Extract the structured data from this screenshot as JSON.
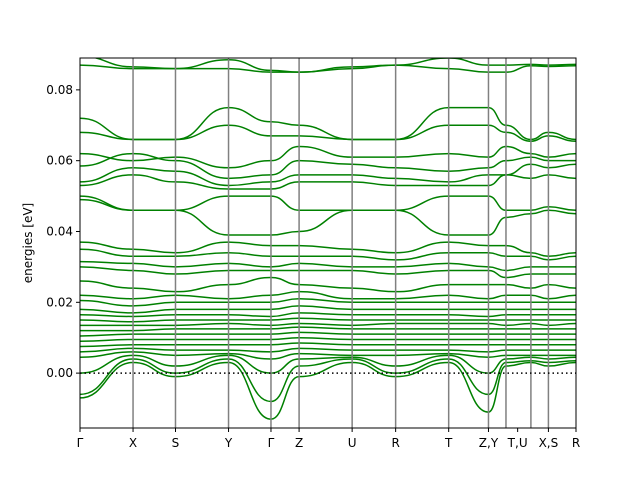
{
  "chart_data": {
    "type": "line",
    "title": "",
    "xlabel": "",
    "ylabel": "energies [eV]",
    "ylim": [
      -0.0155,
      0.089
    ],
    "yticks": [
      0.0,
      0.02,
      0.04,
      0.06,
      0.08
    ],
    "ytick_labels": [
      "0.00",
      "0.02",
      "0.04",
      "0.06",
      "0.08"
    ],
    "kpath": {
      "positions": [
        0,
        1,
        1.8,
        2.8,
        3.6,
        4.13,
        5.13,
        5.95,
        6.95,
        7.7,
        8.03,
        8.5,
        8.83,
        9.35
      ],
      "labels": [
        "Γ",
        "X",
        "S",
        "Y",
        "Γ",
        "Z",
        "U",
        "R",
        "T",
        "Z,Y",
        "T,U",
        "X,S",
        "R"
      ],
      "label_positions": [
        0,
        1,
        1.8,
        2.8,
        3.6,
        4.13,
        5.13,
        5.95,
        6.95,
        7.7,
        8.25,
        8.83,
        9.35
      ]
    },
    "fermi_level": 0.0,
    "colors": {
      "bands": "#008000",
      "vlines": "#808080",
      "fermi": "#000000"
    },
    "bands": [
      [
        0.0895,
        0.0865,
        0.086,
        0.0885,
        0.0855,
        0.085,
        0.0865,
        0.087,
        0.089,
        0.087,
        0.087,
        0.0872,
        0.087,
        0.0872
      ],
      [
        0.087,
        0.086,
        0.086,
        0.086,
        0.085,
        0.085,
        0.086,
        0.087,
        0.086,
        0.085,
        0.085,
        0.0868,
        0.0866,
        0.0868
      ],
      [
        0.072,
        0.066,
        0.066,
        0.075,
        0.071,
        0.07,
        0.066,
        0.066,
        0.075,
        0.075,
        0.07,
        0.066,
        0.068,
        0.066
      ],
      [
        0.068,
        0.066,
        0.066,
        0.07,
        0.067,
        0.067,
        0.066,
        0.066,
        0.07,
        0.07,
        0.068,
        0.0655,
        0.067,
        0.0655
      ],
      [
        0.062,
        0.06,
        0.061,
        0.058,
        0.06,
        0.064,
        0.061,
        0.061,
        0.062,
        0.061,
        0.064,
        0.062,
        0.061,
        0.062
      ],
      [
        0.0585,
        0.062,
        0.06,
        0.055,
        0.056,
        0.06,
        0.059,
        0.058,
        0.057,
        0.058,
        0.06,
        0.061,
        0.06,
        0.06
      ],
      [
        0.054,
        0.058,
        0.057,
        0.053,
        0.054,
        0.056,
        0.056,
        0.055,
        0.054,
        0.056,
        0.056,
        0.059,
        0.058,
        0.059
      ],
      [
        0.053,
        0.056,
        0.054,
        0.052,
        0.052,
        0.054,
        0.054,
        0.053,
        0.053,
        0.053,
        0.056,
        0.055,
        0.056,
        0.055
      ],
      [
        0.05,
        0.046,
        0.046,
        0.05,
        0.05,
        0.046,
        0.046,
        0.046,
        0.05,
        0.05,
        0.046,
        0.046,
        0.047,
        0.046
      ],
      [
        0.049,
        0.046,
        0.046,
        0.039,
        0.039,
        0.04,
        0.046,
        0.046,
        0.039,
        0.039,
        0.044,
        0.045,
        0.046,
        0.045
      ],
      [
        0.037,
        0.035,
        0.034,
        0.037,
        0.036,
        0.036,
        0.035,
        0.034,
        0.037,
        0.036,
        0.036,
        0.034,
        0.033,
        0.034
      ],
      [
        0.035,
        0.033,
        0.033,
        0.034,
        0.033,
        0.033,
        0.033,
        0.032,
        0.034,
        0.034,
        0.033,
        0.033,
        0.032,
        0.033
      ],
      [
        0.0315,
        0.031,
        0.03,
        0.031,
        0.03,
        0.031,
        0.03,
        0.03,
        0.031,
        0.03,
        0.029,
        0.03,
        0.03,
        0.03
      ],
      [
        0.03,
        0.029,
        0.028,
        0.029,
        0.029,
        0.029,
        0.029,
        0.028,
        0.029,
        0.029,
        0.027,
        0.028,
        0.028,
        0.028
      ],
      [
        0.026,
        0.024,
        0.023,
        0.025,
        0.027,
        0.025,
        0.024,
        0.023,
        0.025,
        0.025,
        0.025,
        0.024,
        0.025,
        0.024
      ],
      [
        0.022,
        0.021,
        0.022,
        0.021,
        0.022,
        0.023,
        0.021,
        0.021,
        0.022,
        0.021,
        0.022,
        0.022,
        0.021,
        0.022
      ],
      [
        0.0205,
        0.019,
        0.02,
        0.02,
        0.02,
        0.021,
        0.02,
        0.02,
        0.02,
        0.02,
        0.02,
        0.02,
        0.02,
        0.02
      ],
      [
        0.018,
        0.017,
        0.018,
        0.018,
        0.018,
        0.019,
        0.018,
        0.018,
        0.018,
        0.018,
        0.018,
        0.018,
        0.018,
        0.018
      ],
      [
        0.0165,
        0.016,
        0.0165,
        0.0165,
        0.016,
        0.017,
        0.0165,
        0.0165,
        0.0165,
        0.016,
        0.0165,
        0.0165,
        0.0165,
        0.0165
      ],
      [
        0.015,
        0.0145,
        0.015,
        0.015,
        0.015,
        0.0155,
        0.015,
        0.015,
        0.015,
        0.015,
        0.015,
        0.015,
        0.015,
        0.015
      ],
      [
        0.0135,
        0.0135,
        0.0135,
        0.014,
        0.0135,
        0.014,
        0.0135,
        0.014,
        0.014,
        0.014,
        0.0135,
        0.014,
        0.0135,
        0.014
      ],
      [
        0.012,
        0.012,
        0.0125,
        0.0125,
        0.0125,
        0.013,
        0.0125,
        0.0125,
        0.0125,
        0.0125,
        0.0125,
        0.0125,
        0.0125,
        0.0125
      ],
      [
        0.0105,
        0.011,
        0.011,
        0.011,
        0.011,
        0.0115,
        0.011,
        0.011,
        0.011,
        0.011,
        0.011,
        0.011,
        0.011,
        0.011
      ],
      [
        0.009,
        0.0095,
        0.0095,
        0.0095,
        0.0095,
        0.01,
        0.0095,
        0.0095,
        0.0095,
        0.0095,
        0.0095,
        0.0095,
        0.0095,
        0.0095
      ],
      [
        0.0075,
        0.008,
        0.008,
        0.008,
        0.008,
        0.0085,
        0.008,
        0.008,
        0.008,
        0.008,
        0.008,
        0.008,
        0.008,
        0.008
      ],
      [
        0.006,
        0.007,
        0.0065,
        0.0065,
        0.006,
        0.007,
        0.0065,
        0.0065,
        0.0065,
        0.006,
        0.0065,
        0.0065,
        0.0065,
        0.0065
      ],
      [
        0.0045,
        0.006,
        0.005,
        0.0055,
        0.004,
        0.0055,
        0.005,
        0.005,
        0.0055,
        0.0045,
        0.005,
        0.005,
        0.005,
        0.005
      ],
      [
        0.0,
        0.005,
        0.002,
        0.005,
        0.0,
        0.004,
        0.0045,
        0.002,
        0.005,
        0.0,
        0.004,
        0.0045,
        0.004,
        0.0045
      ],
      [
        -0.006,
        0.004,
        0.0,
        0.004,
        -0.008,
        0.002,
        0.004,
        0.0,
        0.004,
        -0.006,
        0.003,
        0.0035,
        0.003,
        0.0035
      ],
      [
        -0.007,
        0.003,
        -0.001,
        0.003,
        -0.013,
        -0.001,
        0.003,
        -0.001,
        0.003,
        -0.011,
        0.002,
        0.003,
        0.002,
        0.003
      ]
    ]
  }
}
